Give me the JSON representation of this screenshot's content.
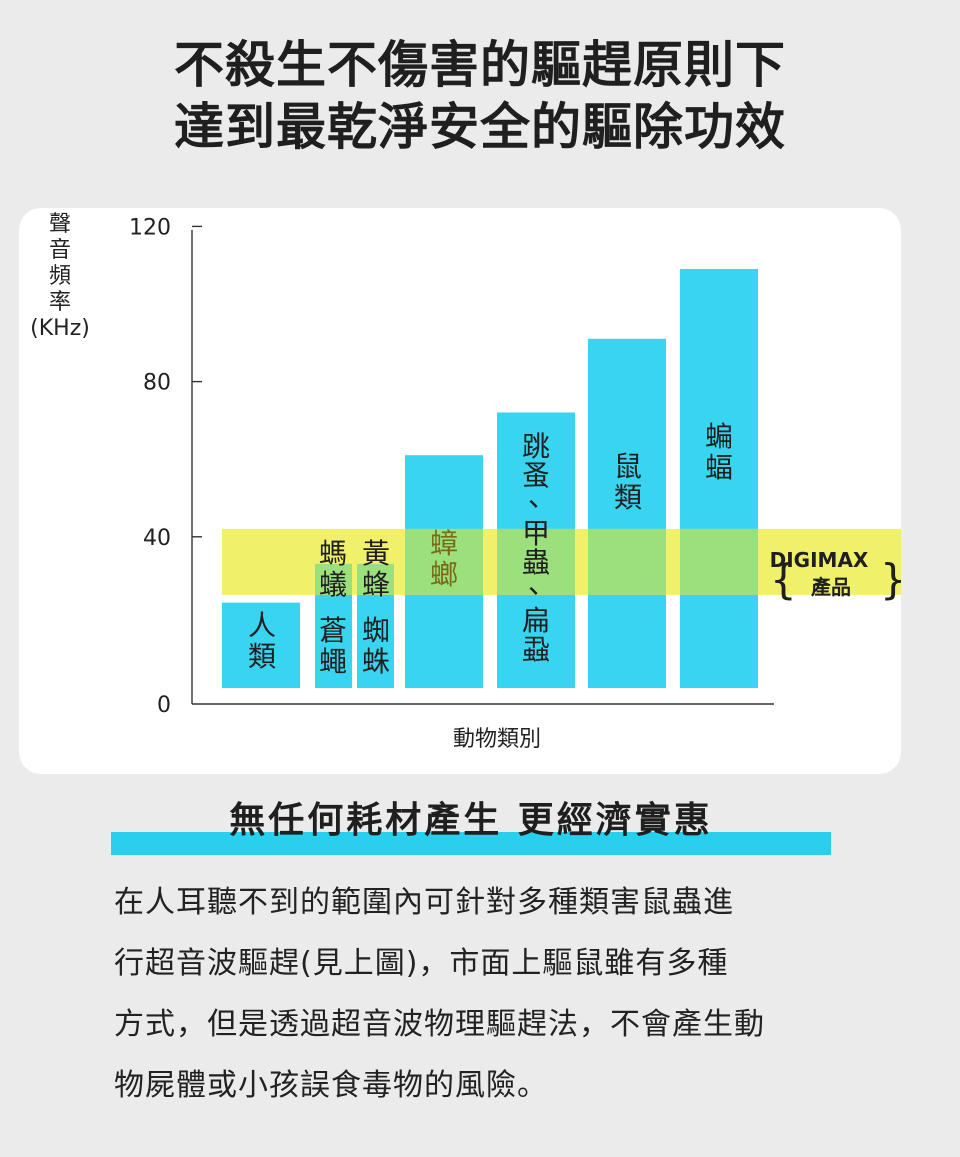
{
  "headline": {
    "line1": "不殺生不傷害的驅趕原則下",
    "line2": "達到最乾淨安全的驅除功效"
  },
  "chart_data": {
    "type": "bar",
    "xlabel": "動物類別",
    "ylabel": [
      "聲",
      "音",
      "頻",
      "率",
      "(KHz)"
    ],
    "yticks": [
      0,
      40,
      80,
      120
    ],
    "ylim": [
      0,
      120
    ],
    "categories": [
      [
        "人",
        "類"
      ],
      [
        "蒼",
        "蠅"
      ],
      [
        "蜘",
        "蛛"
      ],
      [
        "蟑",
        "螂"
      ],
      [
        "跳",
        "蚤",
        "、",
        "甲",
        "蟲",
        "、",
        "扁",
        "蝨"
      ],
      [
        "鼠",
        "類"
      ],
      [
        "蝙",
        "蝠"
      ]
    ],
    "extra_labels": [
      [
        "螞",
        "蟻"
      ],
      [
        "黃",
        "蜂"
      ]
    ],
    "values": [
      22,
      32,
      32,
      60,
      71,
      90,
      108
    ],
    "band": {
      "from": 24,
      "to": 41,
      "label_line1": "DIGIMAX",
      "label_line2": "產品"
    },
    "colors": {
      "bar": "#38d4f0",
      "band": "#f0f06a",
      "overlap": "#9ce07e",
      "band_text_on_bar": "#7a6a16"
    },
    "grid": false
  },
  "subheading": "無任何耗材產生 更經濟實惠",
  "body": [
    "在人耳聽不到的範圍內可針對多種類害鼠蟲進",
    "行超音波驅趕(見上圖)，市面上驅鼠雖有多種",
    "方式，但是透過超音波物理驅趕法，不會產生動",
    "物屍體或小孩誤食毒物的風險。"
  ]
}
